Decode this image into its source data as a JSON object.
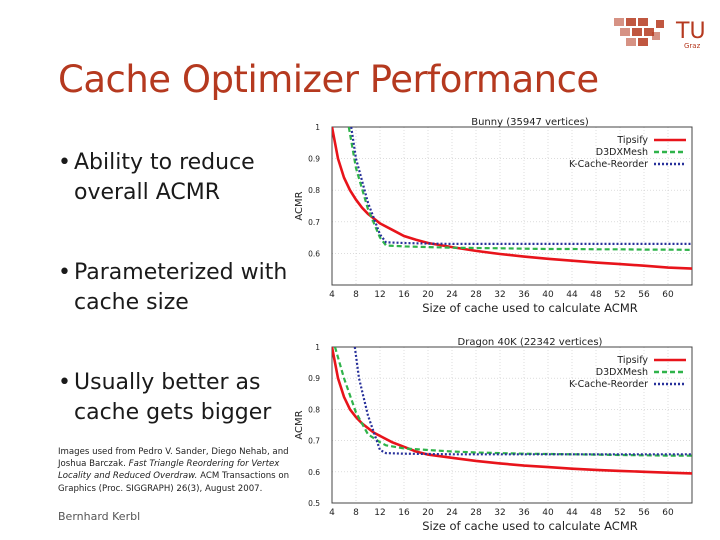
{
  "slide": {
    "title": "Cache Optimizer Performance",
    "bullets": [
      "Ability to reduce overall ACMR",
      "Parameterized with cache size",
      "Usually better as cache gets bigger"
    ],
    "credit": {
      "prefix": "Images used from Pedro V. Sander, Diego Nehab, and Joshua Barczak.",
      "paper_title": "Fast Triangle Reordering for Vertex Locality and Reduced Overdraw.",
      "suffix": "ACM Transactions on Graphics (Proc. SIGGRAPH) 26(3), August 2007."
    },
    "author": "Bernhard Kerbl",
    "logo": {
      "text_big": "TU",
      "text_small": "Graz",
      "color": "#b5391f"
    }
  },
  "chart_data": [
    {
      "type": "line",
      "title": "Bunny (35947 vertices)",
      "xlabel": "Size of cache used to calculate ACMR",
      "ylabel": "ACMR",
      "xlim": [
        4,
        64
      ],
      "ylim": [
        0.5,
        1.0
      ],
      "xticks": [
        4,
        8,
        12,
        16,
        20,
        24,
        28,
        32,
        36,
        40,
        44,
        48,
        52,
        56,
        60
      ],
      "yticks": [
        0.6,
        0.7,
        0.8,
        0.9,
        1
      ],
      "grid": true,
      "legend": "top-right",
      "series": [
        {
          "name": "Tipsify",
          "color": "#e8141b",
          "dash": "solid",
          "x": [
            4,
            5,
            6,
            7,
            8,
            9,
            10,
            11,
            12,
            14,
            16,
            18,
            20,
            24,
            28,
            32,
            36,
            40,
            44,
            48,
            52,
            56,
            60,
            64
          ],
          "y": [
            1.0,
            0.9,
            0.84,
            0.8,
            0.77,
            0.745,
            0.725,
            0.71,
            0.695,
            0.675,
            0.655,
            0.643,
            0.633,
            0.62,
            0.608,
            0.598,
            0.59,
            0.583,
            0.577,
            0.571,
            0.566,
            0.561,
            0.555,
            0.552
          ]
        },
        {
          "name": "D3DXMesh",
          "color": "#2fb34a",
          "dash": "dashed",
          "x": [
            6.8,
            8,
            10,
            12,
            13,
            16,
            20,
            24,
            28,
            32,
            36,
            40,
            44,
            48,
            52,
            56,
            60,
            64
          ],
          "y": [
            1.0,
            0.87,
            0.74,
            0.65,
            0.625,
            0.622,
            0.62,
            0.618,
            0.617,
            0.616,
            0.615,
            0.614,
            0.614,
            0.613,
            0.613,
            0.612,
            0.612,
            0.611
          ]
        },
        {
          "name": "K-Cache-Reorder",
          "color": "#27309a",
          "dash": "dotted",
          "x": [
            7.2,
            8,
            10,
            12,
            13,
            16,
            20,
            24,
            28,
            32,
            36,
            40,
            44,
            48,
            52,
            56,
            60,
            64
          ],
          "y": [
            1.0,
            0.9,
            0.76,
            0.66,
            0.635,
            0.633,
            0.631,
            0.63,
            0.63,
            0.63,
            0.63,
            0.63,
            0.63,
            0.63,
            0.63,
            0.63,
            0.63,
            0.63
          ]
        }
      ]
    },
    {
      "type": "line",
      "title": "Dragon 40K (22342 vertices)",
      "xlabel": "Size of cache used to calculate ACMR",
      "ylabel": "ACMR",
      "xlim": [
        4,
        64
      ],
      "ylim": [
        0.5,
        1.0
      ],
      "xticks": [
        4,
        8,
        12,
        16,
        20,
        24,
        28,
        32,
        36,
        40,
        44,
        48,
        52,
        56,
        60
      ],
      "yticks": [
        0.5,
        0.6,
        0.7,
        0.8,
        0.9,
        1
      ],
      "grid": true,
      "legend": "top-right",
      "series": [
        {
          "name": "Tipsify",
          "color": "#e8141b",
          "dash": "solid",
          "x": [
            4,
            5,
            6,
            7,
            8,
            9,
            10,
            11,
            12,
            14,
            16,
            18,
            20,
            24,
            28,
            32,
            36,
            40,
            44,
            48,
            52,
            56,
            60,
            64
          ],
          "y": [
            1.0,
            0.9,
            0.84,
            0.8,
            0.775,
            0.755,
            0.74,
            0.725,
            0.715,
            0.695,
            0.68,
            0.665,
            0.655,
            0.645,
            0.635,
            0.627,
            0.62,
            0.615,
            0.61,
            0.606,
            0.603,
            0.6,
            0.597,
            0.595
          ]
        },
        {
          "name": "D3DXMesh",
          "color": "#2fb34a",
          "dash": "dashed",
          "x": [
            4.5,
            6,
            8,
            10,
            12,
            13,
            16,
            20,
            24,
            28,
            32,
            36,
            40,
            44,
            48,
            52,
            56,
            60,
            64
          ],
          "y": [
            1.0,
            0.9,
            0.79,
            0.72,
            0.695,
            0.685,
            0.675,
            0.67,
            0.665,
            0.662,
            0.66,
            0.658,
            0.657,
            0.656,
            0.655,
            0.654,
            0.653,
            0.652,
            0.652
          ]
        },
        {
          "name": "K-Cache-Reorder",
          "color": "#27309a",
          "dash": "dotted",
          "x": [
            7.8,
            8.5,
            10,
            12,
            13,
            16,
            20,
            24,
            28,
            32,
            36,
            40,
            44,
            48,
            52,
            56,
            60,
            64
          ],
          "y": [
            1.0,
            0.9,
            0.78,
            0.67,
            0.66,
            0.658,
            0.657,
            0.656,
            0.656,
            0.656,
            0.656,
            0.656,
            0.656,
            0.656,
            0.656,
            0.656,
            0.656,
            0.656
          ]
        }
      ]
    }
  ]
}
